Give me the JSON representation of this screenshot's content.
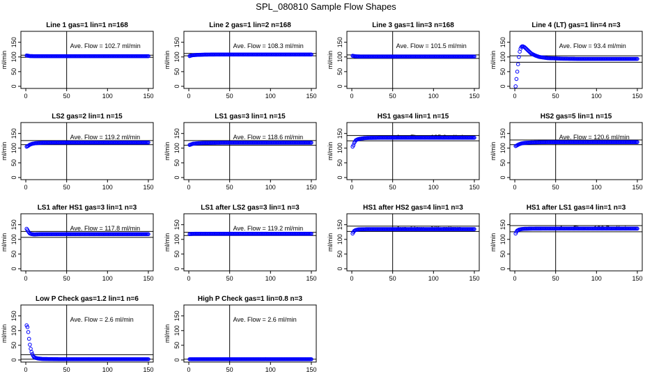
{
  "figure_title": "SPL_080810  Sample Flow Shapes",
  "colors": {
    "points": "#0000ff",
    "axis": "#000000",
    "background": "#ffffff"
  },
  "chart_data": [
    {
      "type": "scatter",
      "title": "Line 1 gas=1 lin=1 n=168",
      "ylabel": "ml/min",
      "xlim": [
        0,
        150
      ],
      "ylim": [
        0,
        180
      ],
      "xticks": [
        0,
        50,
        100,
        150
      ],
      "yticks": [
        0,
        50,
        100,
        150
      ],
      "annotation": "Ave. Flow =  102.7  ml/min",
      "vline_x": 50,
      "hlines": [
        99,
        106
      ],
      "series": [
        {
          "x": [
            1,
            3,
            5,
            10,
            20,
            40,
            60,
            80,
            100,
            120,
            140,
            150
          ],
          "y": [
            105,
            104,
            103,
            102.7,
            102.7,
            102.7,
            102.7,
            102.7,
            102.7,
            102.7,
            102.7,
            102.7
          ]
        }
      ]
    },
    {
      "type": "scatter",
      "title": "Line 2 gas=1 lin=2 n=168",
      "ylabel": "ml/min",
      "xlim": [
        0,
        150
      ],
      "ylim": [
        0,
        180
      ],
      "xticks": [
        0,
        50,
        100,
        150
      ],
      "yticks": [
        0,
        50,
        100,
        150
      ],
      "annotation": "Ave. Flow =  108.3  ml/min",
      "vline_x": 50,
      "hlines": [
        104,
        112
      ],
      "series": [
        {
          "x": [
            1,
            3,
            5,
            10,
            20,
            40,
            60,
            80,
            100,
            120,
            140,
            150
          ],
          "y": [
            103,
            105,
            106,
            107,
            108,
            108.3,
            108.3,
            108.3,
            108.3,
            108.3,
            108.3,
            108.3
          ]
        }
      ]
    },
    {
      "type": "scatter",
      "title": "Line 3 gas=1 lin=3 n=168",
      "ylabel": "ml/min",
      "xlim": [
        0,
        150
      ],
      "ylim": [
        0,
        180
      ],
      "xticks": [
        0,
        50,
        100,
        150
      ],
      "yticks": [
        0,
        50,
        100,
        150
      ],
      "annotation": "Ave. Flow =  101.5  ml/min",
      "vline_x": 50,
      "hlines": [
        95,
        107
      ],
      "series": [
        {
          "x": [
            1,
            3,
            5,
            10,
            20,
            40,
            60,
            80,
            100,
            120,
            140,
            150
          ],
          "y": [
            104,
            103,
            102,
            101.5,
            101.5,
            101.5,
            101.5,
            101.5,
            101.5,
            101.5,
            101.5,
            101.5
          ]
        }
      ]
    },
    {
      "type": "scatter",
      "title": "Line 4 (LT) gas=1 lin=4 n=3",
      "ylabel": "ml/min",
      "xlim": [
        0,
        150
      ],
      "ylim": [
        0,
        180
      ],
      "xticks": [
        0,
        50,
        100,
        150
      ],
      "yticks": [
        0,
        50,
        100,
        150
      ],
      "annotation": "Ave. Flow =  93.4  ml/min",
      "vline_x": 50,
      "hlines": [
        82,
        104
      ],
      "series": [
        {
          "x": [
            1,
            2,
            3,
            4,
            5,
            6,
            7,
            8,
            9,
            10,
            12,
            14,
            17,
            20,
            25,
            30,
            40,
            50,
            60,
            80,
            100,
            120,
            140,
            150
          ],
          "y": [
            0,
            25,
            50,
            75,
            100,
            118,
            128,
            134,
            136,
            136,
            133,
            128,
            120,
            112,
            105,
            100,
            96,
            95,
            94,
            93.4,
            93.4,
            93.4,
            93.4,
            93.4
          ]
        }
      ]
    },
    {
      "type": "scatter",
      "title": "LS2 gas=2 lin=1 n=15",
      "ylabel": "ml/min",
      "xlim": [
        0,
        150
      ],
      "ylim": [
        0,
        180
      ],
      "xticks": [
        0,
        50,
        100,
        150
      ],
      "yticks": [
        0,
        50,
        100,
        150
      ],
      "annotation": "Ave. Flow =  119.2  ml/min",
      "vline_x": 50,
      "hlines": [
        112,
        126
      ],
      "series": [
        {
          "x": [
            1,
            3,
            5,
            8,
            12,
            20,
            40,
            60,
            80,
            100,
            120,
            140,
            150
          ],
          "y": [
            105,
            108,
            112,
            115,
            117,
            118.5,
            119.2,
            119.2,
            119.2,
            119.2,
            119.2,
            119.2,
            119.2
          ]
        }
      ]
    },
    {
      "type": "scatter",
      "title": "LS1 gas=3 lin=1 n=15",
      "ylabel": "ml/min",
      "xlim": [
        0,
        150
      ],
      "ylim": [
        0,
        180
      ],
      "xticks": [
        0,
        50,
        100,
        150
      ],
      "yticks": [
        0,
        50,
        100,
        150
      ],
      "annotation": "Ave. Flow =  118.6  ml/min",
      "vline_x": 50,
      "hlines": [
        110,
        126
      ],
      "series": [
        {
          "x": [
            1,
            3,
            5,
            8,
            12,
            20,
            40,
            60,
            80,
            100,
            120,
            140,
            150
          ],
          "y": [
            111,
            113,
            115,
            116,
            117,
            118,
            118.6,
            118.6,
            118.6,
            118.6,
            118.6,
            118.6,
            118.6
          ]
        }
      ]
    },
    {
      "type": "scatter",
      "title": "HS1 gas=4 lin=1 n=15",
      "ylabel": "ml/min",
      "xlim": [
        0,
        150
      ],
      "ylim": [
        0,
        180
      ],
      "xticks": [
        0,
        50,
        100,
        150
      ],
      "yticks": [
        0,
        50,
        100,
        150
      ],
      "annotation": "Ave. Flow =  135.6  ml/min",
      "vline_x": 50,
      "hlines": [
        125,
        143
      ],
      "series": [
        {
          "x": [
            1,
            2,
            3,
            4,
            5,
            7,
            10,
            15,
            20,
            40,
            60,
            80,
            100,
            120,
            140,
            150
          ],
          "y": [
            105,
            110,
            118,
            123,
            127,
            130,
            132,
            134,
            135,
            135.6,
            135.6,
            135.6,
            135.6,
            135.6,
            135.6,
            135.6
          ]
        }
      ]
    },
    {
      "type": "scatter",
      "title": "HS2 gas=5 lin=1 n=15",
      "ylabel": "ml/min",
      "xlim": [
        0,
        150
      ],
      "ylim": [
        0,
        180
      ],
      "xticks": [
        0,
        50,
        100,
        150
      ],
      "yticks": [
        0,
        50,
        100,
        150
      ],
      "annotation": "Ave. Flow =  120.6  ml/min",
      "vline_x": 50,
      "hlines": [
        112,
        128
      ],
      "series": [
        {
          "x": [
            1,
            3,
            5,
            8,
            12,
            20,
            40,
            60,
            80,
            100,
            120,
            140,
            150
          ],
          "y": [
            107,
            110,
            113,
            116,
            118,
            119.5,
            120.6,
            120.6,
            120.6,
            120.6,
            120.6,
            120.6,
            120.6
          ]
        }
      ]
    },
    {
      "type": "scatter",
      "title": "LS1 after HS1 gas=3 lin=1 n=3",
      "ylabel": "ml/min",
      "xlim": [
        0,
        150
      ],
      "ylim": [
        0,
        180
      ],
      "xticks": [
        0,
        50,
        100,
        150
      ],
      "yticks": [
        0,
        50,
        100,
        150
      ],
      "annotation": "Ave. Flow =  117.8  ml/min",
      "vline_x": 50,
      "hlines": [
        107,
        127
      ],
      "series": [
        {
          "x": [
            1,
            2,
            3,
            4,
            5,
            7,
            10,
            15,
            20,
            40,
            60,
            80,
            100,
            120,
            140,
            150
          ],
          "y": [
            136,
            132,
            127,
            123,
            120,
            118,
            117,
            117.5,
            117.8,
            117.8,
            117.8,
            117.8,
            117.8,
            117.8,
            117.8,
            117.8
          ]
        }
      ]
    },
    {
      "type": "scatter",
      "title": "LS1 after LS2 gas=3 lin=1 n=3",
      "ylabel": "ml/min",
      "xlim": [
        0,
        150
      ],
      "ylim": [
        0,
        180
      ],
      "xticks": [
        0,
        50,
        100,
        150
      ],
      "yticks": [
        0,
        50,
        100,
        150
      ],
      "annotation": "Ave. Flow =  119.2  ml/min",
      "vline_x": 50,
      "hlines": [
        113,
        124
      ],
      "series": [
        {
          "x": [
            1,
            3,
            5,
            10,
            20,
            40,
            60,
            80,
            100,
            120,
            140,
            150
          ],
          "y": [
            118,
            118.5,
            119,
            119.2,
            119.2,
            119.2,
            119.2,
            119.2,
            119.2,
            119.2,
            119.2,
            119.2
          ]
        }
      ]
    },
    {
      "type": "scatter",
      "title": "HS1 after HS2 gas=4 lin=1 n=3",
      "ylabel": "ml/min",
      "xlim": [
        0,
        150
      ],
      "ylim": [
        0,
        180
      ],
      "xticks": [
        0,
        50,
        100,
        150
      ],
      "yticks": [
        0,
        50,
        100,
        150
      ],
      "annotation": "Ave. Flow =  135  ml/min",
      "vline_x": 50,
      "hlines": [
        127,
        145
      ],
      "series": [
        {
          "x": [
            1,
            2,
            3,
            5,
            8,
            12,
            20,
            40,
            60,
            80,
            100,
            120,
            140,
            150
          ],
          "y": [
            120,
            125,
            129,
            132,
            134,
            134.5,
            135,
            135,
            135,
            135,
            135,
            135,
            135,
            135
          ]
        }
      ]
    },
    {
      "type": "scatter",
      "title": "HS1 after LS1 gas=4 lin=1 n=3",
      "ylabel": "ml/min",
      "xlim": [
        0,
        150
      ],
      "ylim": [
        0,
        180
      ],
      "xticks": [
        0,
        50,
        100,
        150
      ],
      "yticks": [
        0,
        50,
        100,
        150
      ],
      "annotation": "Ave. Flow =  136.7  ml/min",
      "vline_x": 50,
      "hlines": [
        126,
        147
      ],
      "series": [
        {
          "x": [
            1,
            2,
            3,
            5,
            8,
            12,
            20,
            40,
            60,
            80,
            100,
            120,
            140,
            150
          ],
          "y": [
            120,
            126,
            130,
            133,
            135,
            136,
            136.5,
            136.7,
            136.7,
            136.7,
            136.7,
            136.7,
            136.7,
            136.7
          ]
        }
      ]
    },
    {
      "type": "scatter",
      "title": "Low P Check gas=1.2 lin=1 n=6",
      "ylabel": "ml/min",
      "xlim": [
        0,
        150
      ],
      "ylim": [
        0,
        180
      ],
      "xticks": [
        0,
        50,
        100,
        150
      ],
      "yticks": [
        0,
        50,
        100,
        150
      ],
      "annotation": "Ave. Flow =  2.6  ml/min",
      "vline_x": 50,
      "hlines": [
        2.6,
        18
      ],
      "series": [
        {
          "x": [
            1,
            2,
            3,
            4,
            5,
            6,
            7,
            8,
            9,
            10,
            12,
            15,
            20,
            30,
            40,
            60,
            80,
            100,
            120,
            140,
            150
          ],
          "y": [
            118,
            112,
            95,
            72,
            52,
            38,
            27,
            20,
            14,
            10,
            7,
            5,
            3.5,
            3,
            2.6,
            2.6,
            2.6,
            2.6,
            2.6,
            2.6,
            2.6
          ]
        }
      ]
    },
    {
      "type": "scatter",
      "title": "High P Check gas=1 lin=0.8 n=3",
      "ylabel": "ml/min",
      "xlim": [
        0,
        150
      ],
      "ylim": [
        0,
        180
      ],
      "xticks": [
        0,
        50,
        100,
        150
      ],
      "yticks": [
        0,
        50,
        100,
        150
      ],
      "annotation": "Ave. Flow =  2.6  ml/min",
      "vline_x": 50,
      "hlines": [
        2.6
      ],
      "series": [
        {
          "x": [
            1,
            3,
            5,
            10,
            20,
            40,
            60,
            80,
            100,
            120,
            140,
            150
          ],
          "y": [
            2.6,
            2.6,
            2.6,
            2.6,
            2.6,
            2.6,
            2.6,
            2.6,
            2.6,
            2.6,
            2.6,
            2.6
          ]
        }
      ]
    }
  ]
}
